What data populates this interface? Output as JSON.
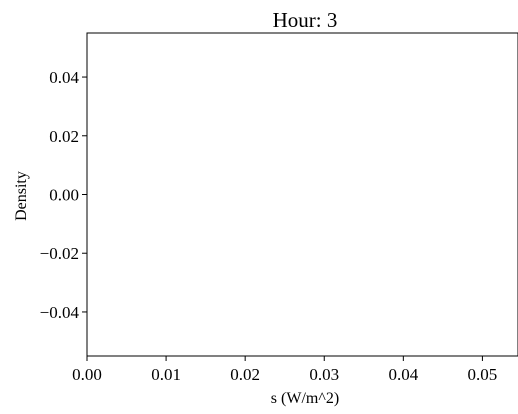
{
  "chart_data": {
    "type": "line",
    "title": "Hour: 3",
    "xlabel": "s (W/m^2)",
    "ylabel": "Density",
    "xlim": [
      0.0,
      0.0545
    ],
    "ylim": [
      -0.055,
      0.055
    ],
    "x_ticks": [
      0.0,
      0.01,
      0.02,
      0.03,
      0.04,
      0.05
    ],
    "x_tick_labels": [
      "0.00",
      "0.01",
      "0.02",
      "0.03",
      "0.04",
      "0.05"
    ],
    "y_ticks": [
      0.04,
      0.02,
      0.0,
      -0.02,
      -0.04
    ],
    "y_tick_labels": [
      "0.04",
      "0.02",
      "0.00",
      "−0.02",
      "−0.04"
    ],
    "series": [],
    "grid": false,
    "legend": "none"
  }
}
